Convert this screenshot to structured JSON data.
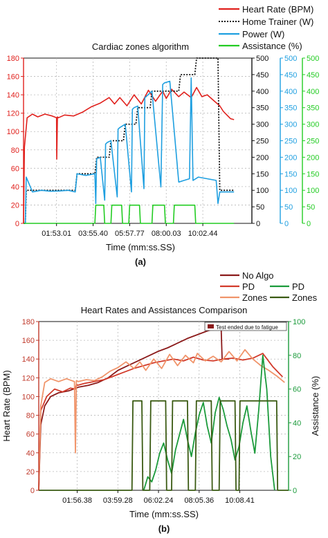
{
  "colors": {
    "hr_red": "#e0201c",
    "trainer_black": "#111111",
    "power_blue": "#1e9fe0",
    "assist_green": "#22cc22",
    "no_algo": "#8b1a1a",
    "pd_red": "#d23a2a",
    "zones_orange": "#f0946a",
    "pd_green": "#1a9a3a",
    "zones_dark_green": "#3a5a12",
    "grid": "#b8b8b8"
  },
  "chart_data": [
    {
      "type": "line",
      "panel_label": "(a)",
      "title": "Cardiac zones algorithm",
      "xlabel": "Time (mm:ss.SS)",
      "x_ticks": [
        "01:53.01",
        "03:55.40",
        "05:57.77",
        "08:00.03",
        "10:02.44"
      ],
      "xlim": [
        0,
        12.8
      ],
      "x_unit": "min",
      "legend_position": "top-right",
      "axes": [
        {
          "id": "hr",
          "side": "left",
          "range": [
            0,
            180
          ],
          "ticks": [
            0,
            20,
            40,
            60,
            80,
            100,
            120,
            140,
            160,
            180
          ],
          "color": "#e0201c"
        },
        {
          "id": "trainer",
          "side": "right-1",
          "range": [
            0,
            500
          ],
          "ticks": [
            0,
            50,
            100,
            150,
            200,
            250,
            300,
            350,
            400,
            450,
            500
          ],
          "color": "#111111"
        },
        {
          "id": "power",
          "side": "right-2",
          "range": [
            0,
            500
          ],
          "ticks": [
            0,
            50,
            100,
            150,
            200,
            250,
            300,
            350,
            400,
            450,
            500
          ],
          "color": "#1e9fe0"
        },
        {
          "id": "assist",
          "side": "right-3",
          "range": [
            0,
            500
          ],
          "ticks": [
            0,
            50,
            100,
            150,
            200,
            250,
            300,
            350,
            400,
            450,
            500
          ],
          "color": "#22cc22"
        }
      ],
      "series": [
        {
          "name": "Heart Rate (BPM)",
          "axis": "hr",
          "color": "#e0201c",
          "dash": "solid",
          "x": [
            0,
            0.05,
            0.2,
            0.5,
            0.8,
            1.2,
            1.6,
            1.85,
            1.86,
            1.9,
            1.95,
            2.3,
            2.8,
            3.3,
            3.8,
            4.3,
            4.8,
            5.1,
            5.4,
            5.8,
            6.2,
            6.6,
            7.0,
            7.4,
            7.8,
            8.0,
            8.3,
            8.7,
            9.0,
            9.4,
            9.7,
            10.0,
            10.3,
            10.7,
            11.0,
            11.2,
            11.4,
            11.6,
            11.8
          ],
          "y": [
            0,
            83,
            115,
            119,
            116,
            119,
            117,
            115,
            70,
            116,
            115,
            118,
            117,
            121,
            127,
            131,
            137,
            130,
            137,
            128,
            140,
            130,
            145,
            133,
            144,
            136,
            146,
            138,
            143,
            137,
            148,
            138,
            140,
            133,
            128,
            122,
            118,
            114,
            113
          ]
        },
        {
          "name": "Home Trainer (W)",
          "axis": "trainer",
          "color": "#111111",
          "dash": "dotted",
          "x": [
            0,
            0.1,
            0.15,
            2.9,
            3.0,
            4.0,
            4.1,
            4.8,
            4.9,
            5.6,
            5.7,
            6.3,
            6.4,
            7.1,
            7.2,
            8.7,
            8.8,
            9.6,
            9.7,
            10.9,
            11.0,
            11.8
          ],
          "y": [
            0,
            0,
            100,
            100,
            150,
            150,
            200,
            200,
            250,
            250,
            300,
            300,
            350,
            350,
            400,
            400,
            450,
            450,
            500,
            500,
            100,
            100
          ]
        },
        {
          "name": "Power (W)",
          "axis": "power",
          "color": "#1e9fe0",
          "dash": "solid",
          "x": [
            0,
            0.1,
            0.15,
            0.5,
            1.0,
            1.5,
            2.0,
            2.5,
            2.9,
            3.0,
            3.5,
            4.0,
            4.05,
            4.1,
            4.3,
            4.55,
            4.6,
            4.7,
            4.9,
            5.25,
            5.3,
            5.4,
            5.7,
            6.05,
            6.1,
            6.2,
            6.4,
            6.75,
            6.8,
            6.9,
            7.2,
            7.7,
            7.8,
            7.9,
            8.2,
            8.7,
            9.0,
            9.3,
            9.4,
            9.5,
            9.8,
            10.3,
            10.8,
            10.9,
            11.0,
            11.8
          ],
          "y": [
            0,
            0,
            140,
            95,
            100,
            97,
            98,
            100,
            95,
            150,
            145,
            150,
            60,
            195,
            200,
            70,
            240,
            245,
            250,
            80,
            285,
            290,
            300,
            95,
            345,
            350,
            355,
            105,
            380,
            385,
            400,
            110,
            420,
            425,
            430,
            125,
            130,
            135,
            440,
            130,
            140,
            135,
            130,
            60,
            95,
            95
          ]
        },
        {
          "name": "Assistance (%)",
          "axis": "assist",
          "color": "#22cc22",
          "dash": "solid",
          "x": [
            0,
            4.0,
            4.05,
            4.5,
            4.55,
            4.9,
            4.95,
            5.5,
            5.55,
            5.9,
            5.95,
            6.5,
            6.55,
            7.2,
            7.25,
            7.9,
            7.95,
            8.4,
            8.45,
            9.6,
            9.65,
            10.8,
            10.85,
            11.8
          ],
          "y": [
            0,
            0,
            55,
            55,
            0,
            0,
            55,
            55,
            0,
            0,
            55,
            55,
            0,
            0,
            55,
            55,
            0,
            0,
            55,
            55,
            0,
            0,
            0,
            0
          ]
        }
      ]
    },
    {
      "type": "line",
      "panel_label": "(b)",
      "title": "Heart Rates and Assistances Comparison",
      "xlabel": "Time (mm:ss.SS)",
      "ylabel_left": "Heart Rate (BPM)",
      "ylabel_right": "Assistance (%)",
      "x_ticks": [
        "01:56.38",
        "03:59.28",
        "06:02.24",
        "08:05.36",
        "10:08.41"
      ],
      "xlim": [
        0,
        12.6
      ],
      "x_unit": "min",
      "ylim_left": [
        0,
        180
      ],
      "ylim_right": [
        0,
        100
      ],
      "annotation": "Test ended due to fatigue",
      "legend_position": "top-right",
      "series": [
        {
          "name": "No Algo",
          "axis": "left",
          "color": "#8b1a1a",
          "x": [
            0,
            0.1,
            0.3,
            0.6,
            1.0,
            1.5,
            2.0,
            2.5,
            3.0,
            3.5,
            4.0,
            4.5,
            5.0,
            5.5,
            6.0,
            6.5,
            7.0,
            7.5,
            8.0,
            8.5,
            9.0,
            9.2,
            9.25,
            9.6
          ],
          "y": [
            0,
            70,
            90,
            100,
            104,
            106,
            110,
            112,
            115,
            120,
            128,
            133,
            138,
            143,
            148,
            152,
            157,
            162,
            166,
            170,
            173,
            173,
            140,
            140
          ]
        },
        {
          "name": "PD",
          "axis": "left",
          "color": "#d23a2a",
          "x": [
            0,
            0.1,
            0.4,
            0.8,
            1.2,
            1.6,
            1.85,
            1.9,
            1.95,
            2.3,
            2.8,
            3.3,
            3.8,
            4.3,
            4.8,
            5.3,
            5.8,
            6.3,
            6.8,
            7.3,
            7.8,
            8.3,
            8.8,
            9.3,
            9.8,
            10.3,
            10.8,
            11.3,
            11.8,
            12.3
          ],
          "y": [
            0,
            85,
            100,
            108,
            105,
            109,
            108,
            113,
            112,
            114,
            116,
            118,
            122,
            126,
            130,
            133,
            136,
            138,
            140,
            138,
            142,
            139,
            138,
            140,
            141,
            139,
            141,
            146,
            132,
            121
          ]
        },
        {
          "name": "Zones",
          "axis": "left",
          "color": "#f0946a",
          "x": [
            0,
            0.1,
            0.3,
            0.6,
            1.0,
            1.4,
            1.8,
            1.85,
            1.9,
            2.0,
            2.4,
            2.8,
            3.2,
            3.6,
            4.0,
            4.4,
            4.8,
            5.1,
            5.4,
            5.8,
            6.2,
            6.6,
            7.0,
            7.4,
            7.8,
            8.0,
            8.4,
            8.8,
            9.2,
            9.6,
            10.0,
            10.4,
            10.8,
            11.2,
            11.6,
            12.0,
            12.4
          ],
          "y": [
            0,
            90,
            115,
            119,
            116,
            119,
            116,
            40,
            117,
            116,
            118,
            117,
            121,
            127,
            131,
            137,
            130,
            137,
            128,
            140,
            130,
            145,
            133,
            144,
            136,
            146,
            138,
            143,
            137,
            148,
            138,
            150,
            140,
            133,
            128,
            122,
            115
          ]
        },
        {
          "name": "PD",
          "axis": "right",
          "color": "#1a9a3a",
          "x": [
            5.3,
            5.5,
            5.7,
            5.9,
            6.1,
            6.3,
            6.5,
            6.7,
            6.9,
            7.1,
            7.3,
            7.5,
            7.7,
            7.9,
            8.1,
            8.3,
            8.5,
            8.7,
            8.9,
            9.1,
            9.3,
            9.5,
            9.7,
            9.9,
            10.1,
            10.3,
            10.5,
            10.7,
            10.9,
            11.1,
            11.3,
            11.5,
            11.7,
            11.9
          ],
          "y": [
            0,
            8,
            5,
            12,
            22,
            28,
            18,
            10,
            24,
            33,
            42,
            30,
            20,
            34,
            45,
            52,
            38,
            28,
            46,
            55,
            48,
            38,
            30,
            18,
            26,
            40,
            50,
            35,
            22,
            48,
            80,
            60,
            20,
            0
          ]
        },
        {
          "name": "Zones",
          "axis": "right",
          "color": "#3a5a12",
          "x": [
            0,
            4.7,
            4.75,
            5.2,
            5.25,
            5.6,
            5.65,
            6.4,
            6.45,
            6.7,
            6.75,
            7.5,
            7.55,
            7.9,
            7.95,
            8.7,
            8.75,
            9.1,
            9.15,
            9.9,
            9.95,
            10.1,
            10.15,
            10.5,
            10.55,
            12.0,
            12.05,
            12.6
          ],
          "y": [
            0,
            0,
            53,
            53,
            0,
            0,
            53,
            53,
            0,
            0,
            53,
            53,
            0,
            0,
            53,
            53,
            0,
            0,
            53,
            53,
            0,
            0,
            53,
            53,
            53,
            53,
            0,
            0
          ]
        }
      ]
    }
  ],
  "legend_a": [
    "Heart Rate (BPM)",
    "Home Trainer (W)",
    "Power (W)",
    "Assistance (%)"
  ],
  "legend_b": [
    "No Algo",
    "PD",
    "Zones",
    "PD",
    "Zones"
  ]
}
